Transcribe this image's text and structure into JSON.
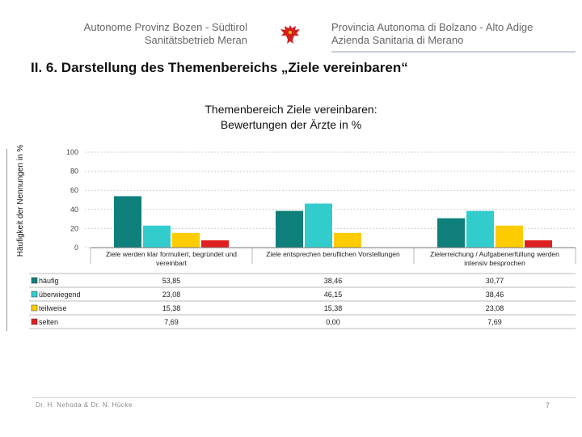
{
  "header": {
    "left_line1": "Autonome Provinz Bozen -  Südtirol",
    "left_line2": "Sanitätsbetrieb Meran",
    "right_line1": "Provincia Autonoma di Bolzano - Alto Adige",
    "right_line2": "Azienda Sanitaria di Merano",
    "emblem": "tyrolean-eagle-icon"
  },
  "section_title": "II. 6. Darstellung des Themenbereichs „Ziele vereinbaren“",
  "footer": {
    "authors": "Dr. H. Nehoda & Dr. N. Hücke",
    "page_number": "7"
  },
  "chart_data": {
    "type": "bar",
    "title_line1": "Themenbereich Ziele vereinbaren:",
    "title_line2": "Bewertungen der Ärzte in %",
    "ylabel": "Häufigkeit der Nennungen in %",
    "ylim": [
      0,
      100
    ],
    "yticks": [
      "0",
      "20",
      "40",
      "60",
      "80",
      "100"
    ],
    "categories": [
      [
        "Ziele werden klar formuliert, begründet und",
        "vereinbart"
      ],
      [
        "Ziele entsprechen beruflichen Vorstellungen"
      ],
      [
        "Zielerreichung / Aufgabenerfüllung werden",
        "intensiv besprochen"
      ]
    ],
    "series": [
      {
        "name": "häufig",
        "color": "#0e7f7b",
        "values": [
          53.85,
          38.46,
          30.77
        ],
        "labels": [
          "53,85",
          "38,46",
          "30,77"
        ]
      },
      {
        "name": "überwiegend",
        "color": "#33cccc",
        "values": [
          23.08,
          46.15,
          38.46
        ],
        "labels": [
          "23,08",
          "46,15",
          "38,46"
        ]
      },
      {
        "name": "teilweise",
        "color": "#ffcc00",
        "values": [
          15.38,
          15.38,
          23.08
        ],
        "labels": [
          "15,38",
          "15,38",
          "23,08"
        ]
      },
      {
        "name": "selten",
        "color": "#e02020",
        "values": [
          7.69,
          0.0,
          7.69
        ],
        "labels": [
          "7,69",
          "0,00",
          "7,69"
        ]
      }
    ]
  }
}
